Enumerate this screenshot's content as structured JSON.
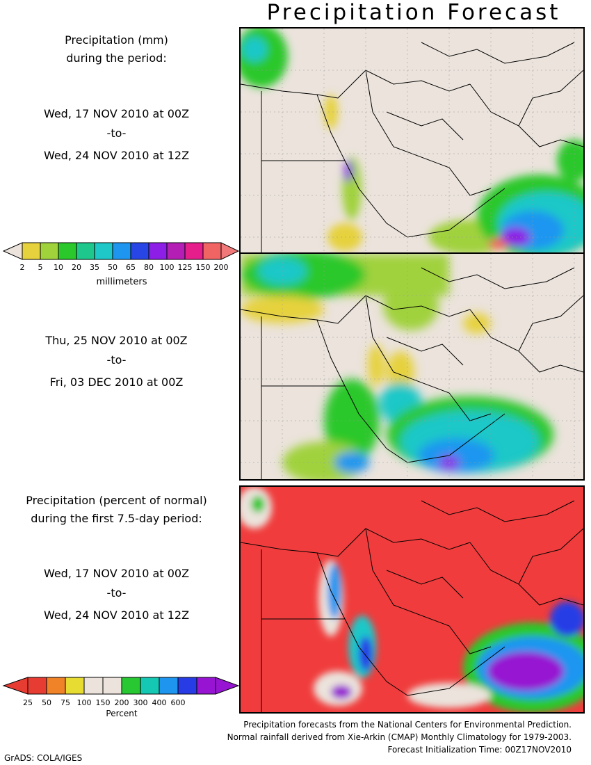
{
  "title": "Precipitation Forecast",
  "section1": {
    "heading_line1": "Precipitation (mm)",
    "heading_line2": "during the period:",
    "start": "Wed, 17 NOV 2010 at 00Z",
    "to": "-to-",
    "end": "Wed, 24 NOV 2010 at 12Z"
  },
  "section2": {
    "start": "Thu, 25 NOV 2010 at 00Z",
    "to": "-to-",
    "end": "Fri, 03 DEC 2010 at 00Z"
  },
  "section3": {
    "heading_line1": "Precipitation (percent of normal)",
    "heading_line2": "during the first 7.5-day period:",
    "start": "Wed, 17 NOV 2010 at 00Z",
    "to": "-to-",
    "end": "Wed, 24 NOV 2010 at 12Z"
  },
  "colorbar_mm": {
    "labels": [
      "2",
      "5",
      "10",
      "20",
      "35",
      "50",
      "65",
      "80",
      "100",
      "125",
      "150",
      "200"
    ],
    "colors": [
      "#e6d23c",
      "#a0d23c",
      "#2ac82a",
      "#1ec88c",
      "#1ec8c8",
      "#1e96f0",
      "#2846e6",
      "#8c1ee6",
      "#b41eb4",
      "#e61e8c",
      "#f06464"
    ],
    "unit": "millimeters"
  },
  "colorbar_pct": {
    "labels": [
      "25",
      "50",
      "75",
      "100",
      "150",
      "200",
      "300",
      "400",
      "600"
    ],
    "colors": [
      "#e63c32",
      "#f08228",
      "#e6dc32",
      "#ebe3dc",
      "#ebe3dc",
      "#28c832",
      "#14c8b4",
      "#1e96f0",
      "#283ce6",
      "#9614d2"
    ],
    "unit": "Percent"
  },
  "footer": {
    "line1": "Precipitation forecasts from the National Centers for Environmental Prediction.",
    "line2": "Normal rainfall derived from Xie-Arkin (CMAP) Monthly Climatology for 1979-2003.",
    "line3": "Forecast Initialization Time: 00Z17NOV2010"
  },
  "credit": "GrADS: COLA/IGES",
  "colors": {
    "land": "#ebe3dc",
    "border": "#000000",
    "red": "#f03c3c"
  }
}
